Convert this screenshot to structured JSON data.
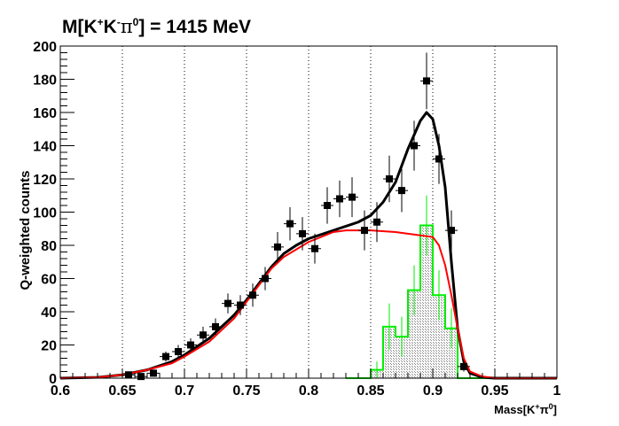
{
  "chart_data": {
    "type": "scatter",
    "title": "M[K⁺K⁻π⁰] = 1415 MeV",
    "title_parts": {
      "pre": "M[K",
      "s1": "+",
      "mid1": "K",
      "s2": "-",
      "mid2": "π",
      "s3": "0",
      "post": "] = 1415 MeV"
    },
    "xlabel": "Mass[K⁺π⁰]",
    "xlabel_parts": {
      "pre": "Mass[K",
      "s1": "+",
      "mid": "π",
      "s2": "0",
      "post": "]"
    },
    "ylabel": "Q-weighted counts",
    "xlim": [
      0.6,
      1.0
    ],
    "ylim": [
      0,
      200
    ],
    "xticks": [
      "0.6",
      "0.65",
      "0.7",
      "0.75",
      "0.8",
      "0.85",
      "0.9",
      "0.95",
      "1"
    ],
    "yticks": [
      "0",
      "20",
      "40",
      "60",
      "80",
      "100",
      "120",
      "140",
      "160",
      "180",
      "200"
    ],
    "grid": "vertical-dotted",
    "series": [
      {
        "name": "data",
        "kind": "points",
        "color": "#000000",
        "x": [
          0.655,
          0.665,
          0.675,
          0.685,
          0.695,
          0.705,
          0.715,
          0.725,
          0.735,
          0.745,
          0.755,
          0.765,
          0.775,
          0.785,
          0.795,
          0.805,
          0.815,
          0.825,
          0.835,
          0.845,
          0.855,
          0.865,
          0.875,
          0.885,
          0.895,
          0.905,
          0.915,
          0.925
        ],
        "y": [
          2,
          1,
          3,
          13,
          16,
          20,
          26,
          31,
          45,
          44,
          50,
          60,
          79,
          93,
          87,
          78,
          104,
          108,
          109,
          89,
          94,
          120,
          113,
          140,
          179,
          132,
          89,
          7
        ],
        "yerr": [
          2,
          2,
          2,
          3,
          4,
          4,
          5,
          5,
          6,
          6,
          7,
          7,
          9,
          10,
          10,
          9,
          11,
          11,
          12,
          12,
          12,
          14,
          13,
          15,
          17,
          15,
          12,
          3
        ]
      },
      {
        "name": "total fit",
        "kind": "line",
        "color": "#000000",
        "x": [
          0.6,
          0.63,
          0.65,
          0.67,
          0.69,
          0.7,
          0.72,
          0.74,
          0.75,
          0.76,
          0.77,
          0.78,
          0.79,
          0.8,
          0.82,
          0.84,
          0.85,
          0.86,
          0.87,
          0.88,
          0.89,
          0.895,
          0.9,
          0.905,
          0.91,
          0.915,
          0.92,
          0.925,
          0.93,
          0.94,
          0.95,
          1.0
        ],
        "y": [
          0,
          0.5,
          2,
          5,
          10,
          14,
          24,
          38,
          47,
          57,
          67,
          75,
          80,
          84,
          89,
          94,
          98,
          106,
          118,
          138,
          155,
          160,
          156,
          140,
          115,
          70,
          30,
          10,
          3,
          0.5,
          0,
          0
        ]
      },
      {
        "name": "background",
        "kind": "line",
        "color": "#ff0000",
        "x": [
          0.6,
          0.63,
          0.65,
          0.67,
          0.69,
          0.7,
          0.72,
          0.74,
          0.75,
          0.76,
          0.77,
          0.78,
          0.8,
          0.82,
          0.83,
          0.85,
          0.87,
          0.89,
          0.9,
          0.905,
          0.91,
          0.915,
          0.92,
          0.925,
          0.93,
          0.94,
          0.95,
          1.0
        ],
        "y": [
          0,
          0.5,
          2,
          5,
          9,
          13,
          22,
          36,
          46,
          56,
          66,
          73,
          82,
          88,
          89,
          89,
          88,
          86,
          85,
          80,
          68,
          50,
          30,
          12,
          4,
          1,
          0,
          0
        ]
      },
      {
        "name": "signal histogram",
        "kind": "histogram",
        "color": "#00ee00",
        "bin_edges": [
          0.85,
          0.86,
          0.87,
          0.88,
          0.89,
          0.9,
          0.91,
          0.92
        ],
        "values": [
          5,
          31,
          25,
          53,
          92,
          50,
          30
        ],
        "yerr": [
          5,
          14,
          12,
          15,
          18,
          15,
          12
        ]
      }
    ]
  }
}
